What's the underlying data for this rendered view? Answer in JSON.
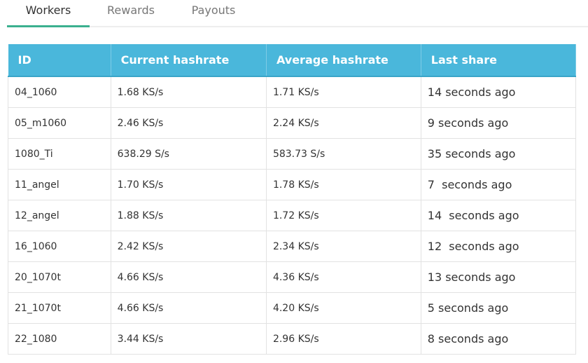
{
  "tabs": [
    "Workers",
    "Rewards",
    "Payouts"
  ],
  "table": {
    "headers": [
      "ID",
      "Current hashrate",
      "Average hashrate",
      "Last share"
    ],
    "rows": [
      [
        "04_1060",
        "1.68 KS/s",
        "1.71 KS/s",
        "14 seconds ago"
      ],
      [
        "05_m1060",
        "2.46 KS/s",
        "2.24 KS/s",
        "9 seconds ago"
      ],
      [
        "1080_Ti",
        "638.29 S/s",
        "583.73 S/s",
        "35 seconds ago"
      ],
      [
        "11_angel",
        "1.70 KS/s",
        "1.78 KS/s",
        "7  seconds ago"
      ],
      [
        "12_angel",
        "1.88 KS/s",
        "1.72 KS/s",
        "14  seconds ago"
      ],
      [
        "16_1060",
        "2.42 KS/s",
        "2.34 KS/s",
        "12  seconds ago"
      ],
      [
        "20_1070t",
        "4.66 KS/s",
        "4.36 KS/s",
        "13 seconds ago"
      ],
      [
        "21_1070t",
        "4.66 KS/s",
        "4.20 KS/s",
        "5 seconds ago"
      ],
      [
        "22_1080",
        "3.44 KS/s",
        "2.96 KS/s",
        "8 seconds ago"
      ]
    ]
  }
}
